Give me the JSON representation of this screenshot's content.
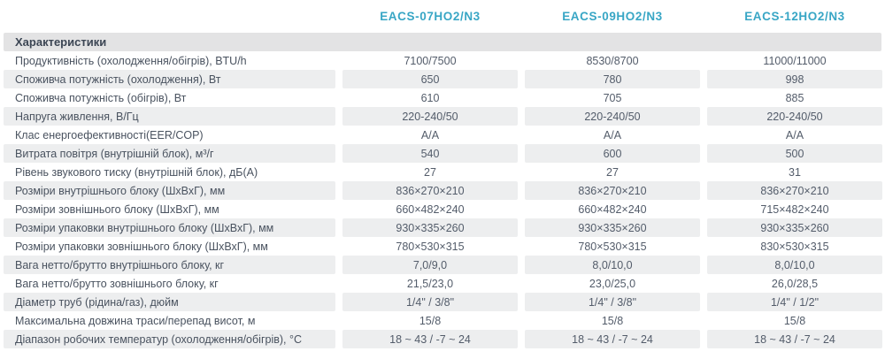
{
  "colors": {
    "accent_teal": "#38a6c5",
    "row_stripe": "#edeeef",
    "section_bar_bg": "#e3e3e4",
    "label_text": "#49525f",
    "value_text": "#535c6a"
  },
  "table": {
    "section_title": "Характеристики",
    "models": [
      "EACS-07HO2/N3",
      "EACS-09HO2/N3",
      "EACS-12HO2/N3"
    ],
    "rows": [
      {
        "label": "Продуктивність (охолодження/обігрів), BTU/h",
        "values": [
          "7100/7500",
          "8530/8700",
          "11000/11000"
        ]
      },
      {
        "label": "Споживча потужність (охолодження), Вт",
        "values": [
          "650",
          "780",
          "998"
        ]
      },
      {
        "label": "Споживча потужність (обігрів), Вт",
        "values": [
          "610",
          "705",
          "885"
        ]
      },
      {
        "label": "Напруга живлення, В/Гц",
        "values": [
          "220-240/50",
          "220-240/50",
          "220-240/50"
        ]
      },
      {
        "label": "Клас енергоефективності(EER/COP)",
        "values": [
          "A/A",
          "A/A",
          "A/A"
        ]
      },
      {
        "label": "Витрата повітря (внутрішній блок), м³/г",
        "values": [
          "540",
          "600",
          "500"
        ]
      },
      {
        "label": "Рівень звукового тиску (внутрішній блок), дБ(А)",
        "values": [
          "27",
          "27",
          "31"
        ]
      },
      {
        "label": "Розміри внутрішнього блоку (ШхВхГ), мм",
        "values": [
          "836×270×210",
          "836×270×210",
          "836×270×210"
        ]
      },
      {
        "label": "Розміри зовнішнього блоку (ШхВхГ), мм",
        "values": [
          "660×482×240",
          "660×482×240",
          "715×482×240"
        ]
      },
      {
        "label": "Розміри упаковки внутрішнього блоку (ШхВхГ), мм",
        "values": [
          "930×335×260",
          "930×335×260",
          "930×335×260"
        ]
      },
      {
        "label": "Розміри упаковки зовнішнього блоку (ШхВхГ), мм",
        "values": [
          "780×530×315",
          "780×530×315",
          "830×530×315"
        ]
      },
      {
        "label": "Вага нетто/брутто внутрішнього блоку, кг",
        "values": [
          "7,0/9,0",
          "8,0/10,0",
          "8,0/10,0"
        ]
      },
      {
        "label": "Вага нетто/брутто зовнішнього блоку, кг",
        "values": [
          "21,5/23,0",
          "23,0/25,0",
          "26,0/28,5"
        ]
      },
      {
        "label": "Діаметр труб (рідина/газ), дюйм",
        "values": [
          "1/4\" / 3/8\"",
          "1/4\" / 3/8\"",
          "1/4\" / 1/2\""
        ]
      },
      {
        "label": "Максимальна довжина траси/перепад висот, м",
        "values": [
          "15/8",
          "15/8",
          "15/8"
        ]
      },
      {
        "label": "Діапазон робочих температур (охолодження/обігрів), °С",
        "values": [
          "18 ~ 43 / -7 ~ 24",
          "18 ~ 43 / -7 ~ 24",
          "18 ~ 43 / -7 ~ 24"
        ]
      }
    ]
  }
}
